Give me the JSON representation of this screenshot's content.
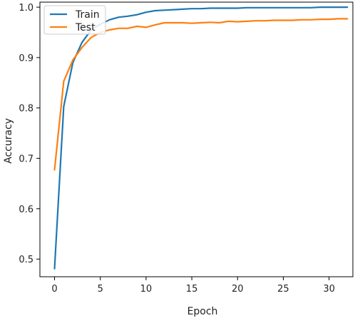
{
  "chart_data": {
    "type": "line",
    "title": "",
    "xlabel": "Epoch",
    "ylabel": "Accuracy",
    "xlim": [
      -1.6,
      32.6
    ],
    "ylim": [
      0.465,
      1.01
    ],
    "xticks": [
      0,
      5,
      10,
      15,
      20,
      25,
      30
    ],
    "yticks": [
      0.5,
      0.6,
      0.7,
      0.8,
      0.9,
      1.0
    ],
    "ytick_labels": [
      "0.5",
      "0.6",
      "0.7",
      "0.8",
      "0.9",
      "1.0"
    ],
    "grid": false,
    "legend_position": "top-left",
    "x": [
      0,
      1,
      2,
      3,
      4,
      5,
      6,
      7,
      8,
      9,
      10,
      11,
      12,
      13,
      14,
      15,
      16,
      17,
      18,
      19,
      20,
      21,
      22,
      23,
      24,
      25,
      26,
      27,
      28,
      29,
      30,
      31,
      32
    ],
    "series": [
      {
        "name": "Train",
        "color": "#1f77b4",
        "values": [
          0.481,
          0.803,
          0.89,
          0.93,
          0.955,
          0.966,
          0.975,
          0.98,
          0.982,
          0.985,
          0.99,
          0.993,
          0.994,
          0.995,
          0.996,
          0.997,
          0.997,
          0.998,
          0.998,
          0.998,
          0.998,
          0.999,
          0.999,
          0.999,
          0.999,
          0.999,
          0.999,
          0.999,
          0.999,
          1.0,
          1.0,
          1.0,
          1.0
        ]
      },
      {
        "name": "Test",
        "color": "#ff7f0e",
        "values": [
          0.677,
          0.853,
          0.895,
          0.92,
          0.94,
          0.95,
          0.955,
          0.958,
          0.958,
          0.962,
          0.96,
          0.965,
          0.969,
          0.969,
          0.969,
          0.968,
          0.969,
          0.97,
          0.969,
          0.972,
          0.971,
          0.972,
          0.973,
          0.973,
          0.974,
          0.974,
          0.974,
          0.975,
          0.975,
          0.976,
          0.976,
          0.977,
          0.977
        ]
      }
    ]
  }
}
